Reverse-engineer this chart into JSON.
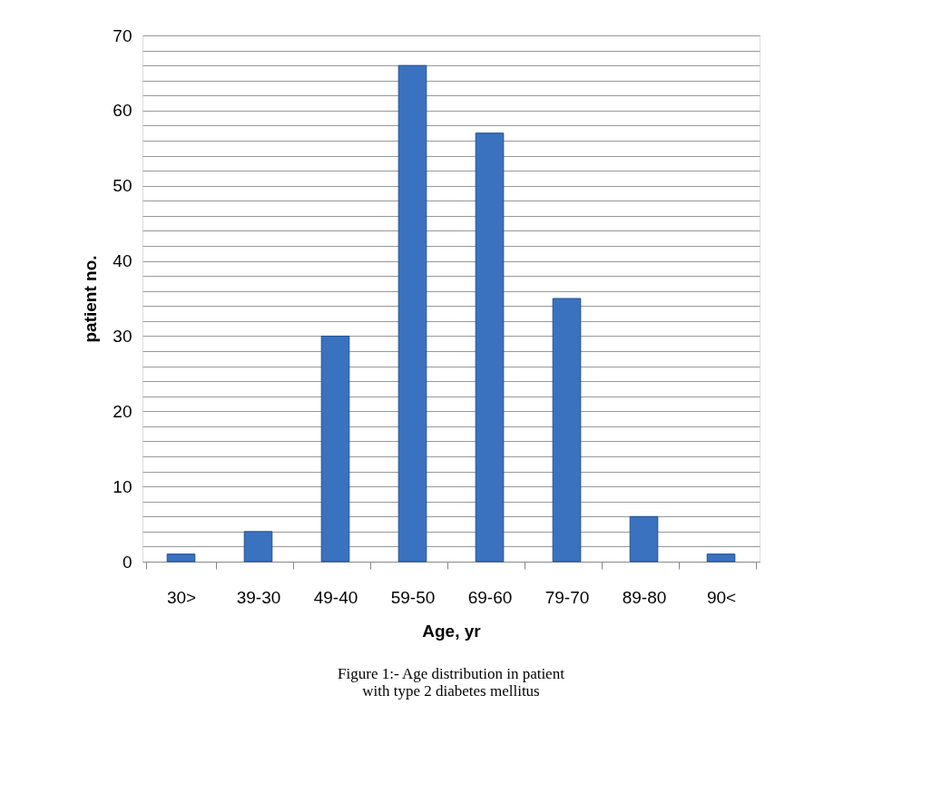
{
  "chart_data": {
    "type": "bar",
    "categories": [
      "30>",
      "39-30",
      "49-40",
      "59-50",
      "69-60",
      "79-70",
      "89-80",
      "90<"
    ],
    "values": [
      1,
      4,
      30,
      66,
      57,
      35,
      6,
      1
    ],
    "color": "#3a72c0",
    "xlabel": "Age, yr",
    "ylabel": "patient no.",
    "ylim": [
      0,
      70
    ],
    "yticks": [
      0,
      {
        "value": 2,
        "label": null
      },
      {
        "value": 4,
        "label": null
      },
      {
        "value": 6,
        "label": null
      },
      {
        "value": 8,
        "label": null
      },
      10,
      {
        "value": 12,
        "label": null
      },
      {
        "value": 14,
        "label": null
      },
      {
        "value": 16,
        "label": null
      },
      {
        "value": 18,
        "label": null
      },
      20,
      {
        "value": 22,
        "label": null
      },
      {
        "value": 24,
        "label": null
      },
      {
        "value": 26,
        "label": null
      },
      {
        "value": 28,
        "label": null
      },
      30,
      {
        "value": 32,
        "label": null
      },
      {
        "value": 34,
        "label": null
      },
      {
        "value": 36,
        "label": null
      },
      {
        "value": 38,
        "label": null
      },
      40,
      {
        "value": 42,
        "label": null
      },
      {
        "value": 44,
        "label": null
      },
      {
        "value": 46,
        "label": null
      },
      {
        "value": 48,
        "label": null
      },
      50,
      {
        "value": 52,
        "label": null
      },
      {
        "value": 54,
        "label": null
      },
      {
        "value": 56,
        "label": null
      },
      {
        "value": 58,
        "label": null
      },
      60,
      {
        "value": 62,
        "label": null
      },
      {
        "value": 64,
        "label": null
      },
      {
        "value": 66,
        "label": null
      },
      {
        "value": 68,
        "label": null
      },
      70
    ],
    "grid": "y",
    "annotations": [
      "Figure 1:- Age distribution in patient with type 2 diabetes mellitus"
    ]
  }
}
